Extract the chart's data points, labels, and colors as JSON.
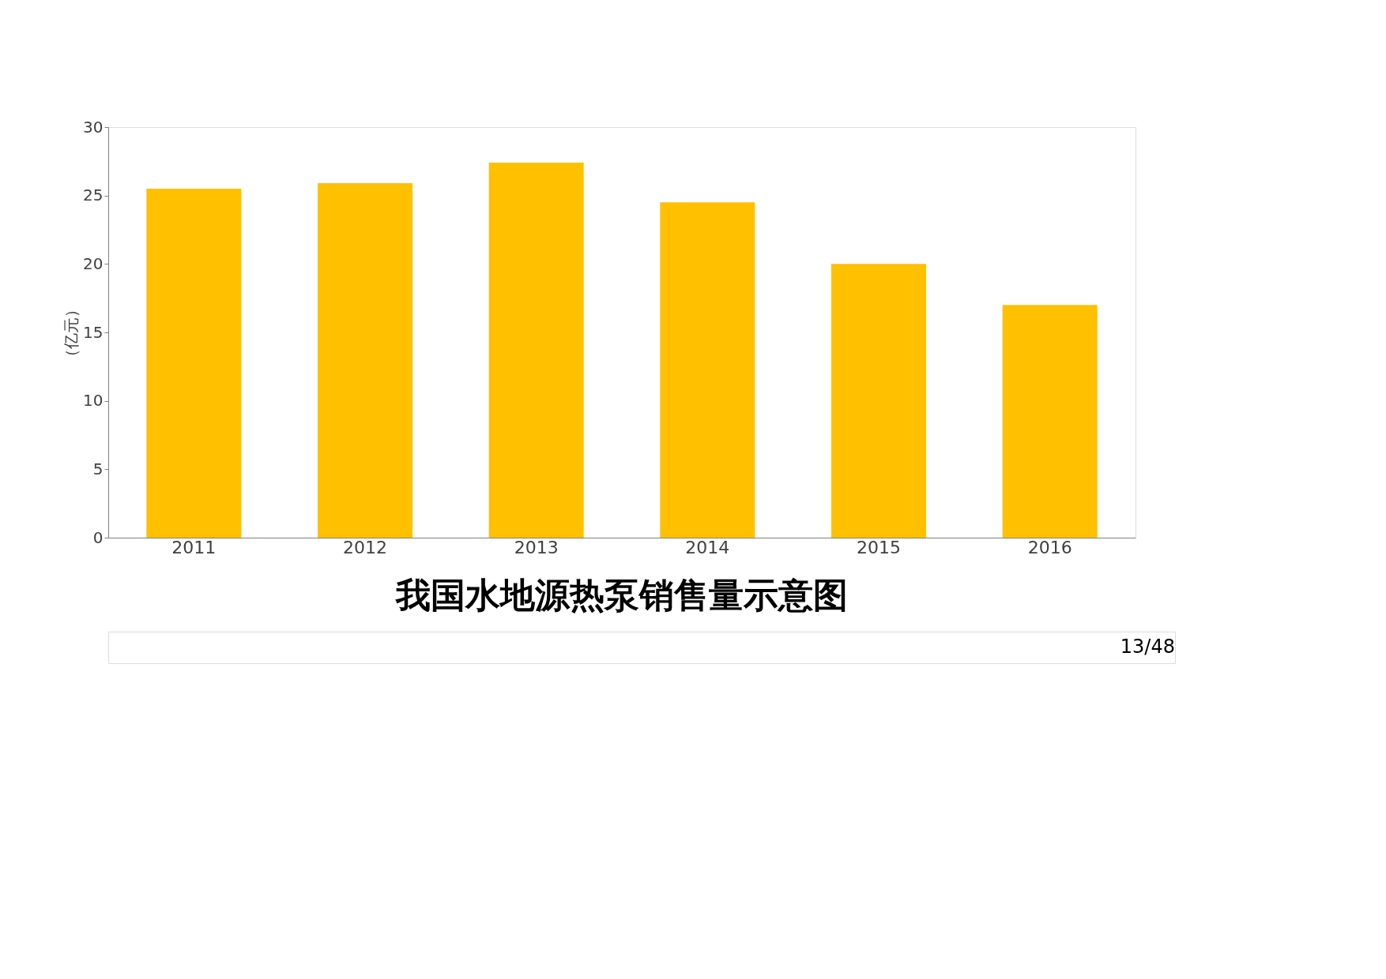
{
  "chart_data": {
    "type": "bar",
    "title": "我国水地源热泵销售量示意图",
    "ylabel": "（亿元）",
    "categories": [
      "2011",
      "2012",
      "2013",
      "2014",
      "2015",
      "2016"
    ],
    "values": [
      25.5,
      25.9,
      27.4,
      24.5,
      20.0,
      17.0
    ],
    "color": "#ffc000",
    "ylim": [
      0,
      30
    ],
    "yticks": [
      0,
      5,
      10,
      15,
      20,
      25,
      30
    ],
    "grid": false,
    "annotations": [
      "13/48"
    ]
  }
}
